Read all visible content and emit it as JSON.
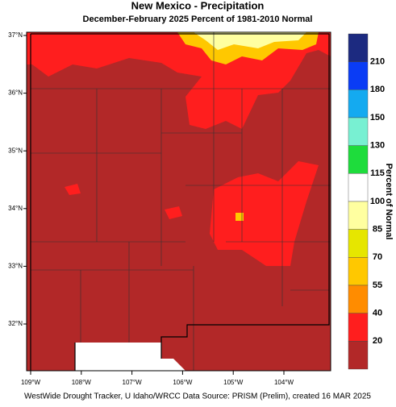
{
  "header": {
    "title": "New Mexico - Precipitation",
    "subtitle": "December-February 2025  Percent of 1981-2010 Normal"
  },
  "map": {
    "lat_labels": [
      "37°N",
      "36°N",
      "35°N",
      "34°N",
      "33°N",
      "32°N"
    ],
    "lon_labels": [
      "109°W",
      "108°W",
      "107°W",
      "106°W",
      "105°W",
      "104°W"
    ]
  },
  "legend": {
    "title": "Percent of Normal",
    "ticks": [
      210,
      180,
      150,
      130,
      115,
      100,
      85,
      70,
      55,
      40,
      20
    ],
    "colors": [
      "#1c2a80",
      "#0a3cf5",
      "#14aaf0",
      "#78f0d2",
      "#1edc3c",
      "#ffffff",
      "#ffffa0",
      "#e6e600",
      "#ffc800",
      "#ff8c00",
      "#ff1e1e",
      "#b22828"
    ]
  },
  "footer": "WestWide Drought Tracker, U Idaho/WRCC Data Source: PRISM (Prelim), created 16 MAR 2025"
}
